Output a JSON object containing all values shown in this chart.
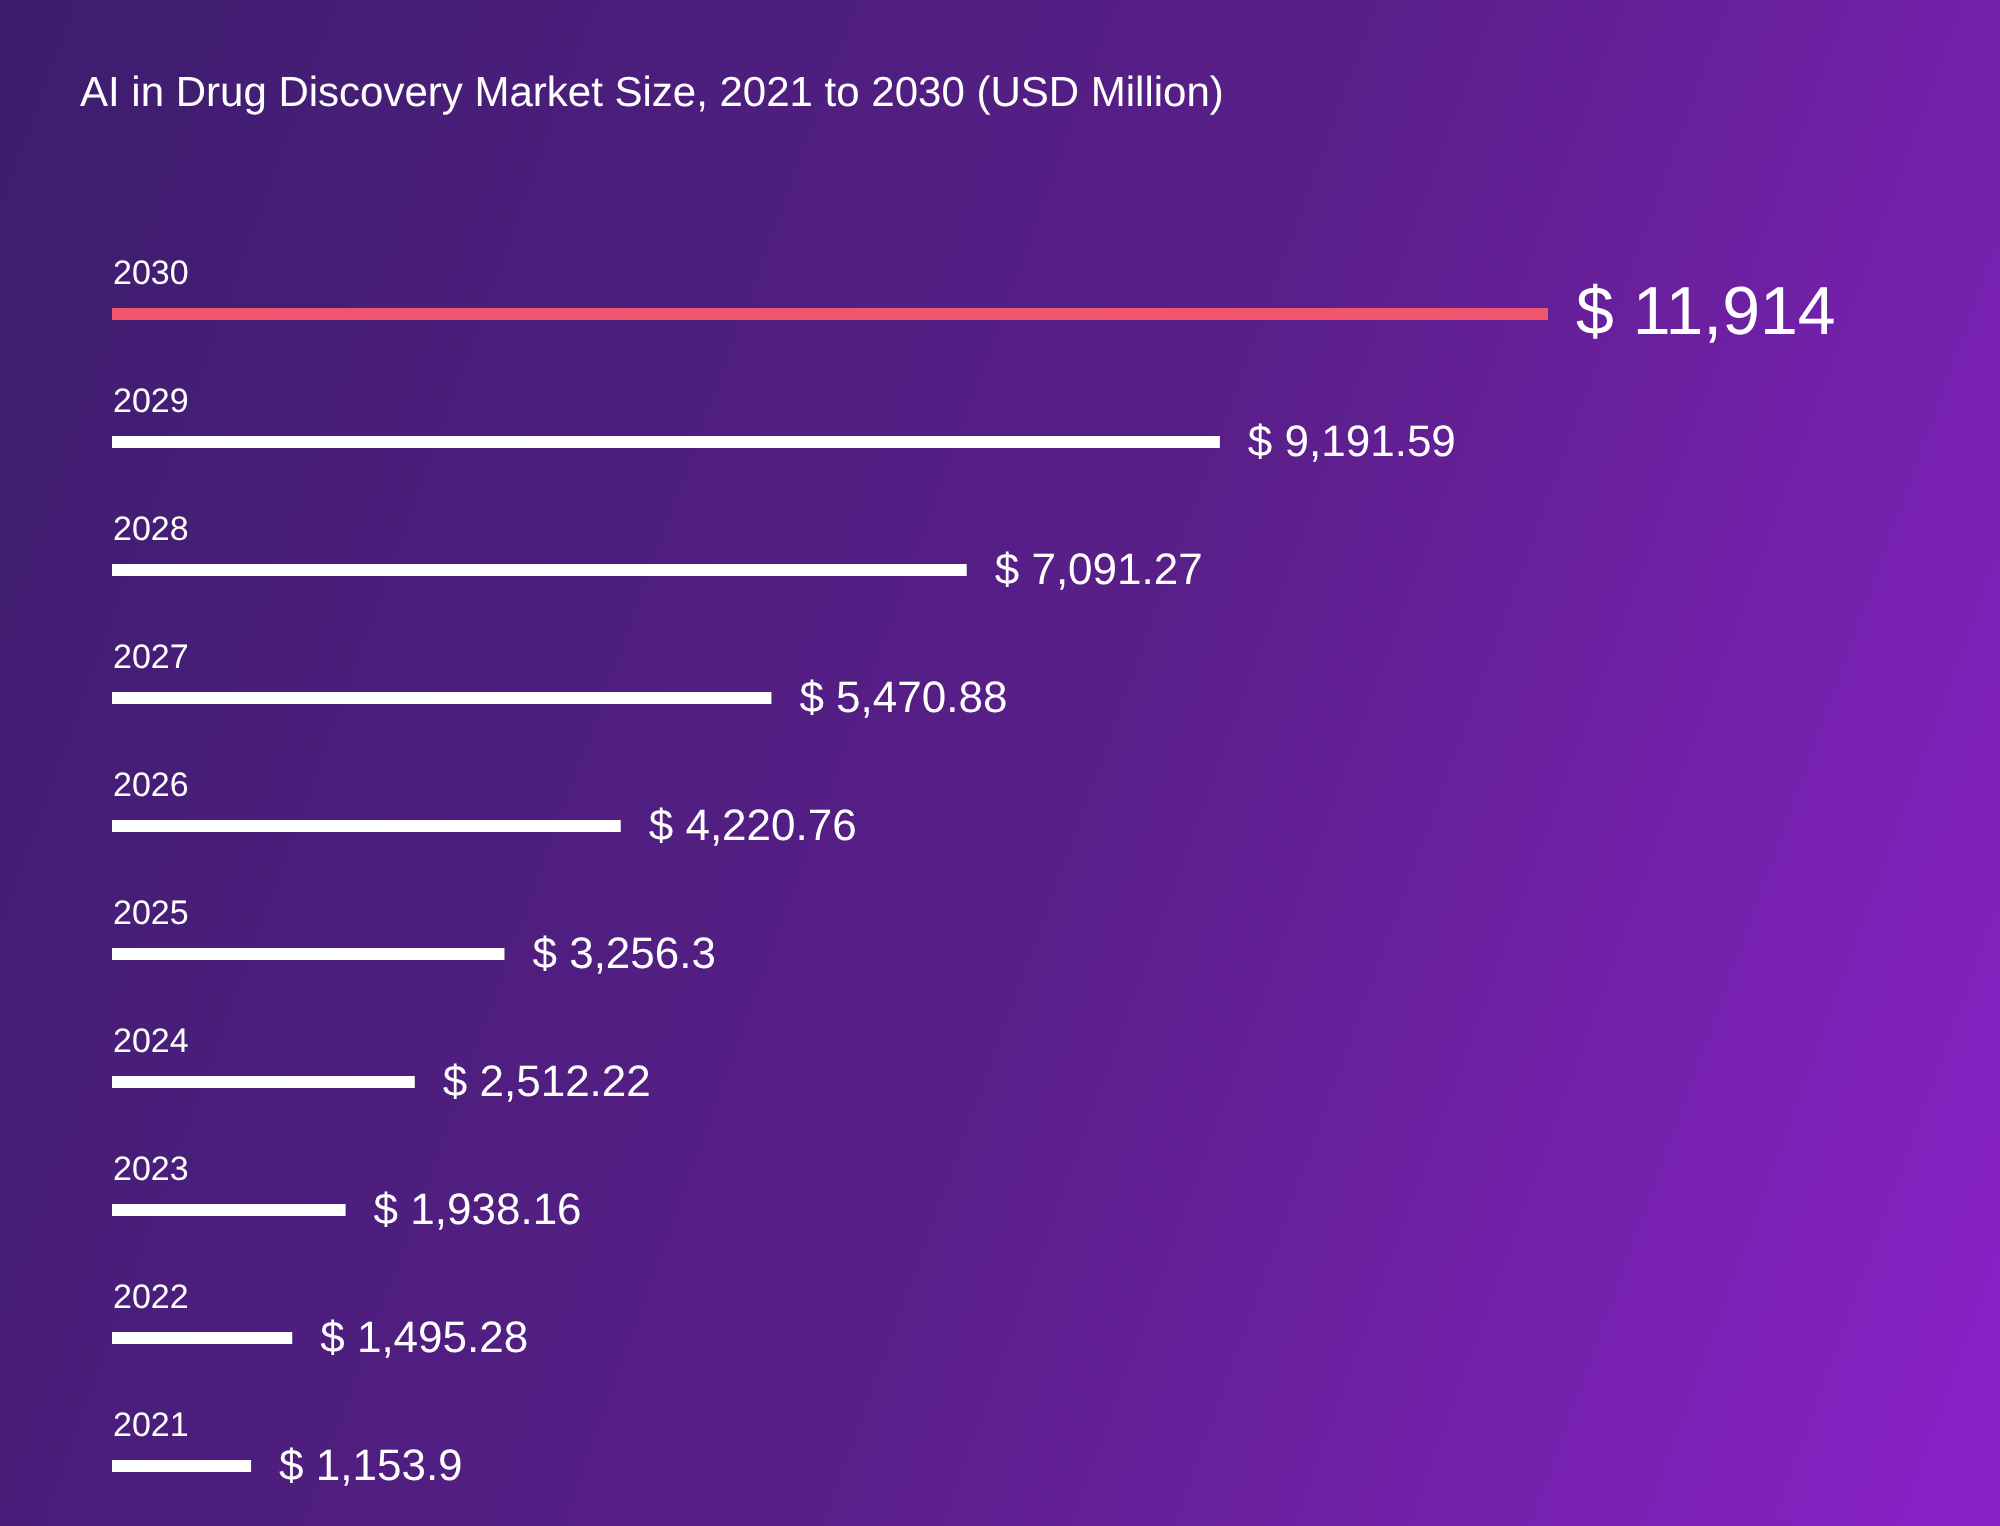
{
  "chart_data": {
    "type": "bar",
    "orientation": "horizontal",
    "title": "AI in Drug Discovery Market Size, 2021 to 2030 (USD Million)",
    "categories": [
      "2030",
      "2029",
      "2028",
      "2027",
      "2026",
      "2025",
      "2024",
      "2023",
      "2022",
      "2021"
    ],
    "values": [
      11914,
      9191.59,
      7091.27,
      5470.88,
      4220.76,
      3256.3,
      2512.22,
      1938.16,
      1495.28,
      1153.9
    ],
    "value_labels": [
      "$ 11,914",
      "$ 9,191.59",
      "$ 7,091.27",
      "$ 5,470.88",
      "$ 4,220.76",
      "$ 3,256.3",
      "$ 2,512.22",
      "$ 1,938.16",
      "$ 1,495.28",
      "$ 1,153.9"
    ],
    "colors": [
      "#f0566e",
      "#ffffff",
      "#ffffff",
      "#ffffff",
      "#ffffff",
      "#ffffff",
      "#ffffff",
      "#ffffff",
      "#ffffff",
      "#ffffff"
    ],
    "tick_labels": "y"
  }
}
